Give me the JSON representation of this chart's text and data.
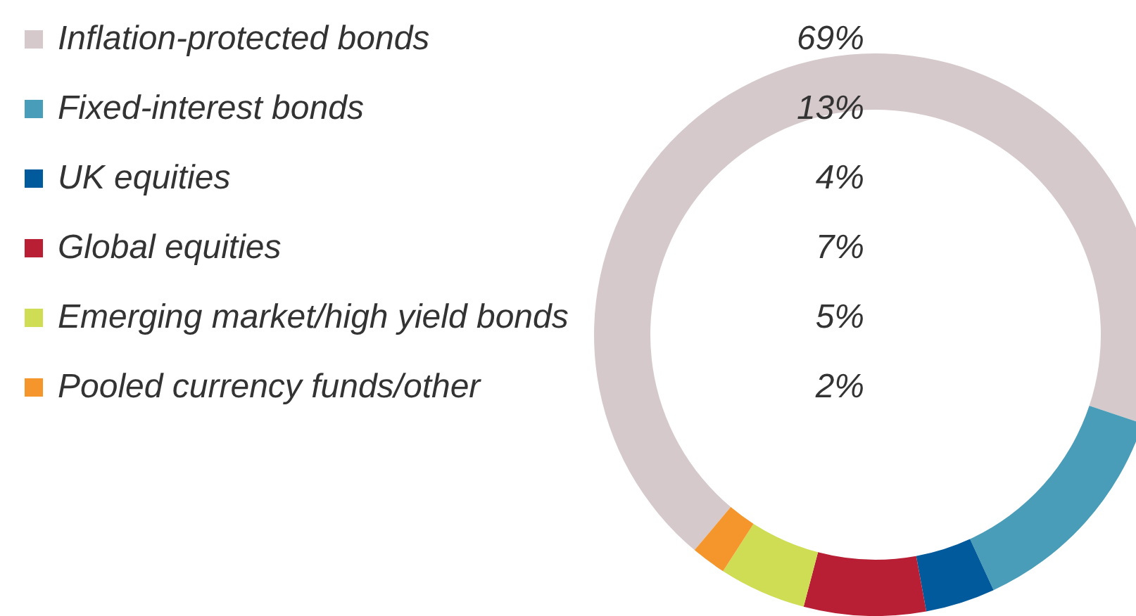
{
  "chart_data": {
    "type": "donut",
    "categories": [
      "Inflation-protected bonds",
      "Fixed-interest bonds",
      "UK equities",
      "Global equities",
      "Emerging market/high yield bonds",
      "Pooled currency funds/other"
    ],
    "values": [
      69,
      13,
      4,
      7,
      5,
      2
    ],
    "colors": [
      "#d6c9cb",
      "#4a9db8",
      "#005a9b",
      "#b81f35",
      "#cedd53",
      "#f5962d"
    ],
    "value_labels": [
      "69%",
      "13%",
      "4%",
      "7%",
      "5%",
      "2%"
    ],
    "legend": "left"
  }
}
